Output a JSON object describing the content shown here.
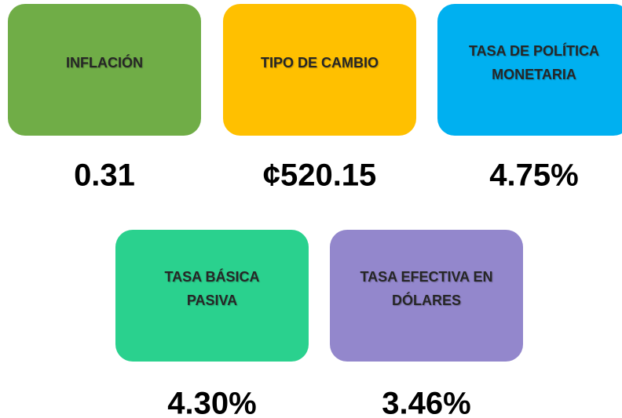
{
  "indicators": [
    {
      "label": [
        "INFLACIÓN"
      ],
      "value": "0.31",
      "color": "#70ad47"
    },
    {
      "label": [
        "TIPO DE CAMBIO"
      ],
      "value": "¢520.15",
      "color": "#ffc000"
    },
    {
      "label": [
        "TASA DE POLÍTICA",
        "MONETARIA"
      ],
      "value": "4.75%",
      "color": "#00b0f0"
    },
    {
      "label": [
        "TASA BÁSICA",
        "PASIVA"
      ],
      "value": "4.30%",
      "color": "#2ad18e"
    },
    {
      "label": [
        "TASA EFECTIVA EN",
        "DÓLARES"
      ],
      "value": "3.46%",
      "color": "#9387cc"
    }
  ]
}
